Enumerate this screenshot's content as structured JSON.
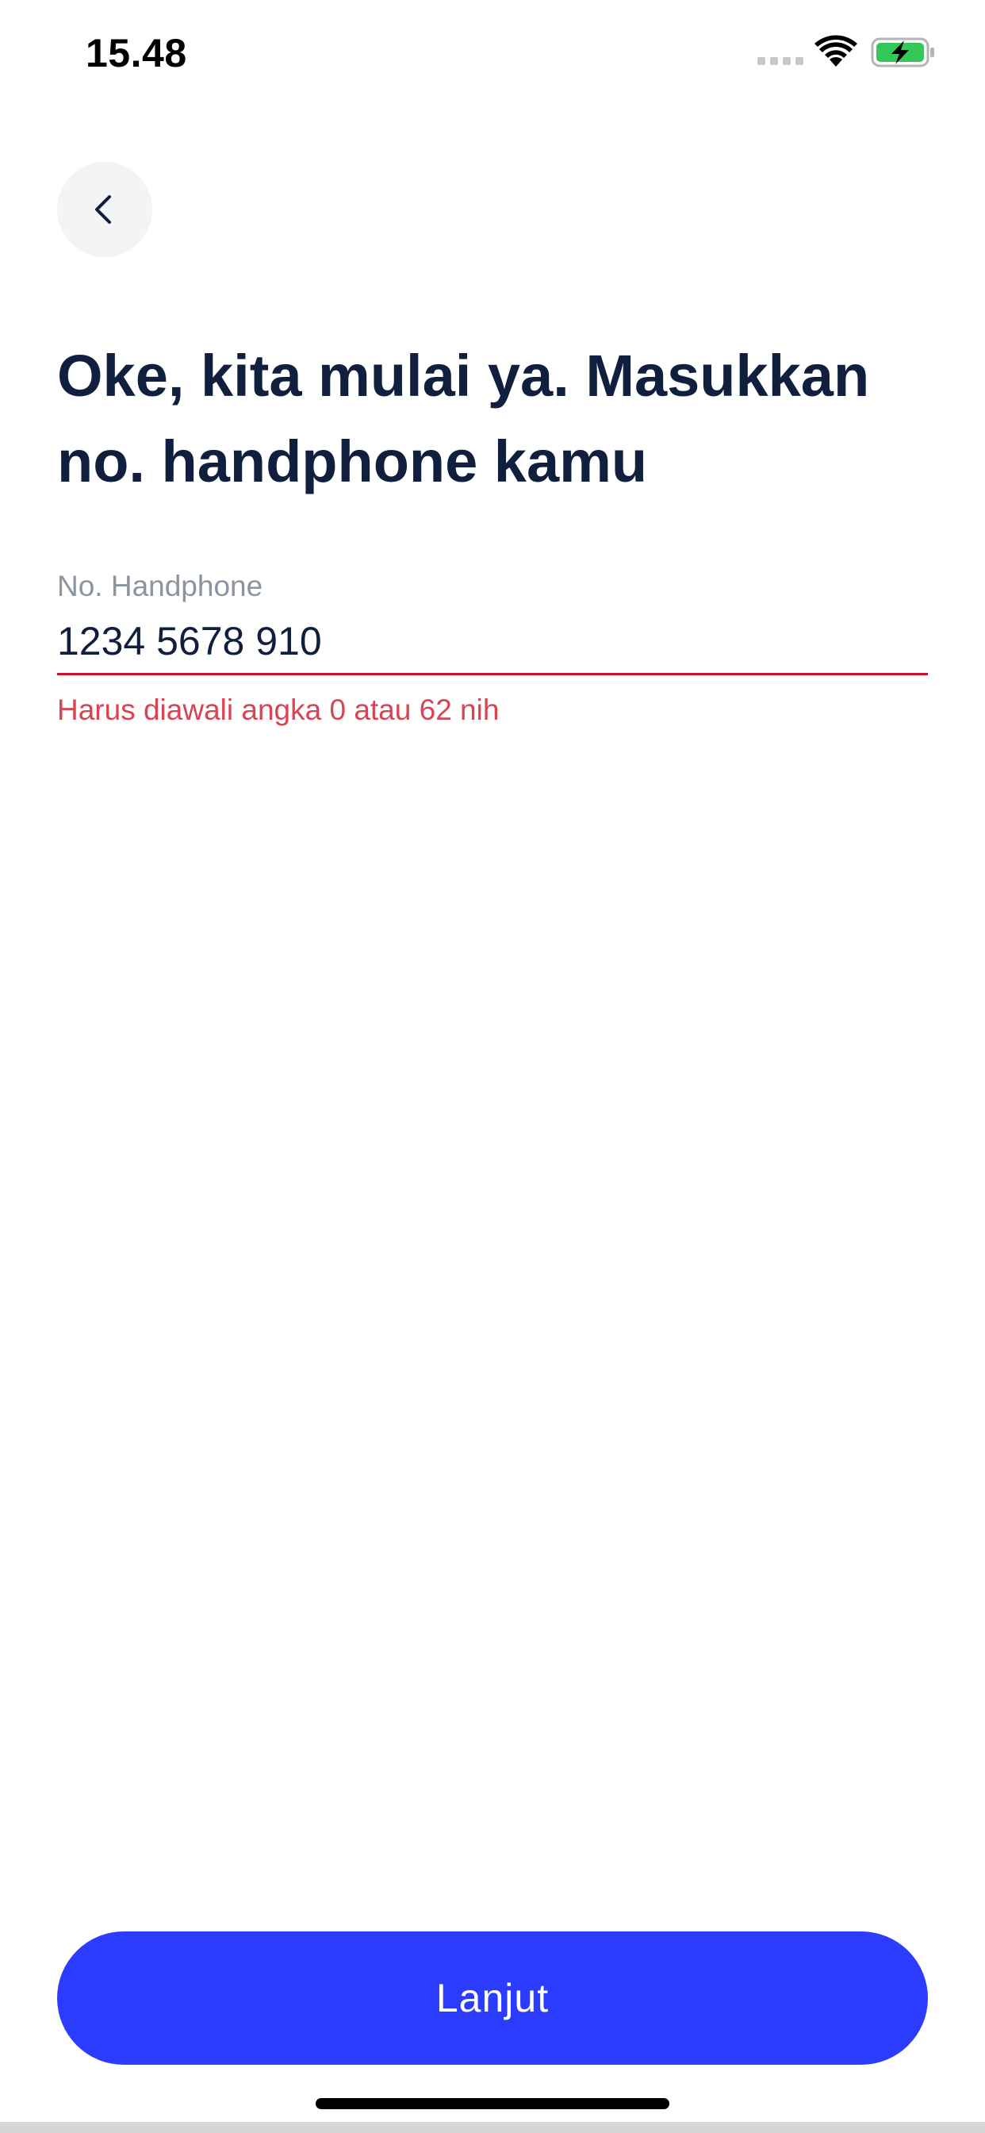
{
  "status_bar": {
    "time": "15.48",
    "icons": [
      "signal-dots-icon",
      "wifi-icon",
      "battery-charging-icon"
    ],
    "battery_color": "#34c759"
  },
  "header": {
    "back_icon": "chevron-left-icon"
  },
  "page": {
    "title": "Oke, kita mulai ya. Masukkan no. handphone kamu"
  },
  "phone_field": {
    "label": "No. Handphone",
    "value": "1234 5678 910",
    "error": "Harus diawali angka 0 atau 62 nih",
    "error_color": "#d94452"
  },
  "footer": {
    "continue_label": "Lanjut",
    "button_color": "#2b3cff"
  }
}
